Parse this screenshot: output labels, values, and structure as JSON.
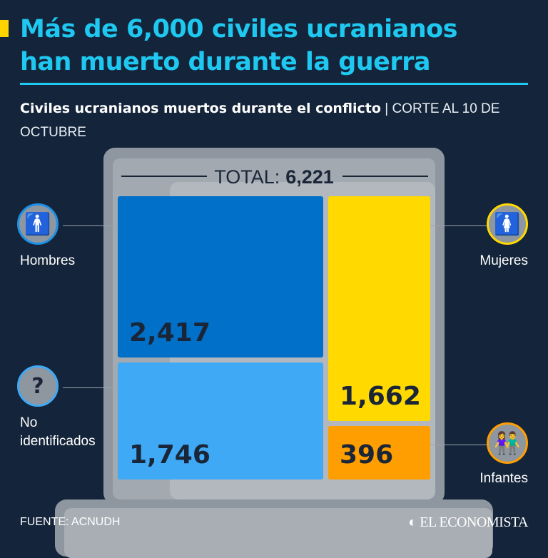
{
  "header": {
    "title_line1": "Más de 6,000 civiles ucranianos",
    "title_line2": "han muerto durante la guerra",
    "subtitle": "Civiles ucranianos muertos durante el conflicto",
    "subtitle_note": " | CORTE AL 10 DE OCTUBRE"
  },
  "chart_data": {
    "type": "treemap",
    "total_label": "TOTAL:",
    "total": "6,221",
    "categories": [
      "Hombres",
      "No identificados",
      "Mujeres",
      "Infantes"
    ],
    "values": [
      2417,
      1746,
      1662,
      396
    ],
    "value_labels": [
      "2,417",
      "1,746",
      "1,662",
      "396"
    ],
    "colors": [
      "#0070c8",
      "#3fa9f5",
      "#ffd900",
      "#ff9e00"
    ],
    "icons": [
      "man-icon",
      "question-icon",
      "woman-icon",
      "children-icon"
    ]
  },
  "footer": {
    "source": "FUENTE: ACNUDH",
    "logo": "EL ECONOMISTA"
  }
}
